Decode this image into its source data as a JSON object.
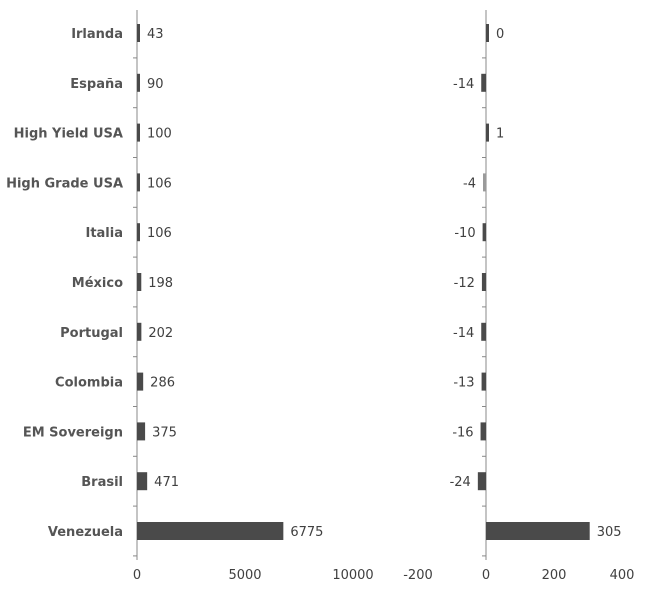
{
  "chart_data": [
    {
      "type": "bar",
      "orientation": "horizontal",
      "categories": [
        "Irlanda",
        "España",
        "High Yield USA",
        "High Grade USA",
        "Italia",
        "México",
        "Portugal",
        "Colombia",
        "EM Sovereign",
        "Brasil",
        "Venezuela"
      ],
      "values": [
        43,
        90,
        100,
        106,
        106,
        198,
        202,
        286,
        375,
        471,
        6775
      ],
      "data_labels": [
        "43",
        "90",
        "100",
        "106",
        "106",
        "198",
        "202",
        "286",
        "375",
        "471",
        "6775"
      ],
      "xlim": [
        0,
        10000
      ],
      "xticks": [
        "0",
        "5000",
        "10000"
      ],
      "grid": false,
      "title": "",
      "xlabel": "",
      "ylabel": ""
    },
    {
      "type": "bar",
      "orientation": "horizontal",
      "categories": [
        "Irlanda",
        "España",
        "High Yield USA",
        "High Grade USA",
        "Italia",
        "México",
        "Portugal",
        "Colombia",
        "EM Sovereign",
        "Brasil",
        "Venezuela"
      ],
      "values": [
        0,
        -14,
        1,
        -4,
        -10,
        -12,
        -14,
        -13,
        -16,
        -24,
        305
      ],
      "data_labels": [
        "0",
        "-14",
        "1",
        "-4",
        "-10",
        "-12",
        "-14",
        "-13",
        "-16",
        "-24",
        "305"
      ],
      "xlim": [
        -200,
        400
      ],
      "xticks": [
        "-200",
        "0",
        "200",
        "400"
      ],
      "grid": false,
      "title": "",
      "xlabel": "",
      "ylabel": ""
    }
  ]
}
